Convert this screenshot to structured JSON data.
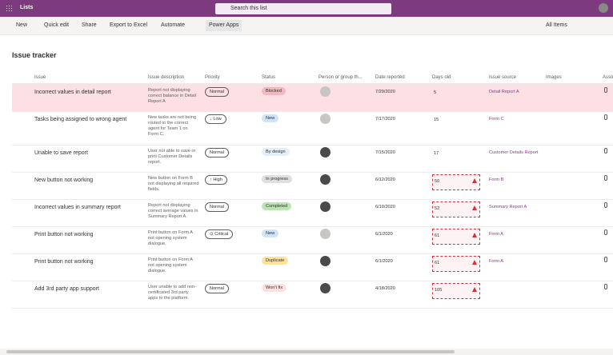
{
  "app": {
    "name": "Lists",
    "search": "Search this list"
  },
  "toolbar": {
    "items": [
      "New",
      "Quick edit",
      "Share",
      "Export to Excel",
      "Automate",
      "Power Apps"
    ],
    "view": "All Items"
  },
  "list": {
    "title": "Issue tracker",
    "columns": [
      "Issue",
      "Issue description",
      "Priority",
      "Status",
      "Person or group th...",
      "Date reported",
      "Days old",
      "Issue source",
      "Images",
      "Asso"
    ],
    "rows": [
      {
        "issue": "Incorrect values in detail report",
        "description": "Report not displaying correct balance in Detail Report A",
        "priority": "Normal",
        "status": "Blocked",
        "status_color": "#f4b7c0",
        "date": "7/29/2020",
        "days": 5,
        "alert": false,
        "source": "Detail Report A",
        "selected": true,
        "avatar": "default"
      },
      {
        "issue": "Tasks being assigned to wrong agent",
        "description": "New tasks are not being routed to the correct agent for Team 1 on Form C.",
        "priority": "↓ Low",
        "status": "New",
        "status_color": "#cfe4fa",
        "date": "7/17/2020",
        "days": 15,
        "alert": false,
        "source": "Form C",
        "selected": false,
        "avatar": "default"
      },
      {
        "issue": "Unable to save report",
        "description": "User not able to save or print Customer Details report.",
        "priority": "Normal",
        "status": "By design",
        "status_color": "#e4eef9",
        "date": "7/15/2020",
        "days": 17,
        "alert": false,
        "source": "Customer Details Report",
        "selected": false,
        "avatar": "photo"
      },
      {
        "issue": "New button not working",
        "description": "New button on Form B not displaying all required fields.",
        "priority": "↑ High",
        "status": "In progress",
        "status_color": "#e1dfdd",
        "date": "6/12/2020",
        "days": 50,
        "alert": true,
        "source": "Form B",
        "selected": false,
        "avatar": "photo"
      },
      {
        "issue": "Incorrect values in summary report",
        "description": "Report not displaying correct average values in Summary Report A.",
        "priority": "Normal",
        "status": "Completed",
        "status_color": "#b9e6b0",
        "date": "6/10/2020",
        "days": 52,
        "alert": true,
        "source": "Summary Report A",
        "selected": false,
        "avatar": "photo"
      },
      {
        "issue": "Print button not working",
        "description": "Print button on Form A not opening system dialogue.",
        "priority": "⊙ Critical",
        "status": "New",
        "status_color": "#cfe4fa",
        "date": "6/1/2020",
        "days": 61,
        "alert": true,
        "source": "Form A",
        "selected": false,
        "avatar": "default"
      },
      {
        "issue": "Print button not working",
        "description": "Print button on Form A not opening system dialogue.",
        "priority": null,
        "status": "Duplicate",
        "status_color": "#fce29b",
        "date": "6/1/2020",
        "days": 61,
        "alert": true,
        "source": "Form A",
        "selected": false,
        "avatar": "photo"
      },
      {
        "issue": "Add 3rd party app support",
        "description": "User unable to add non-certificated 3rd party apps to the platform.",
        "priority": "Normal",
        "status": "Won't fix",
        "status_color": "#fde1e1",
        "date": "4/18/2020",
        "days": 105,
        "alert": true,
        "source": null,
        "selected": false,
        "avatar": "photo"
      }
    ]
  }
}
